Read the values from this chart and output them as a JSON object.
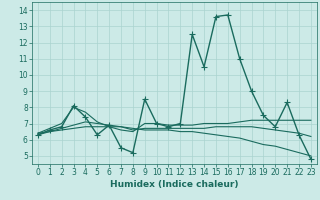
{
  "xlabel": "Humidex (Indice chaleur)",
  "background_color": "#cceae7",
  "grid_color": "#aad4d0",
  "line_color": "#1a6b5e",
  "xlim": [
    -0.5,
    23.5
  ],
  "ylim": [
    4.5,
    14.5
  ],
  "yticks": [
    5,
    6,
    7,
    8,
    9,
    10,
    11,
    12,
    13,
    14
  ],
  "xticks": [
    0,
    1,
    2,
    3,
    4,
    5,
    6,
    7,
    8,
    9,
    10,
    11,
    12,
    13,
    14,
    15,
    16,
    17,
    18,
    19,
    20,
    21,
    22,
    23
  ],
  "series": [
    {
      "x": [
        0,
        1,
        2,
        3,
        4,
        5,
        6,
        7,
        8,
        9,
        10,
        11,
        12,
        13,
        14,
        15,
        16,
        17,
        18,
        19,
        20,
        21,
        22,
        23
      ],
      "y": [
        6.3,
        6.6,
        6.8,
        8.1,
        7.4,
        6.3,
        6.9,
        5.5,
        5.2,
        8.5,
        7.0,
        6.8,
        7.0,
        12.5,
        10.5,
        13.6,
        13.7,
        11.0,
        9.0,
        7.5,
        6.8,
        8.3,
        6.3,
        4.8
      ],
      "color": "#1a6b5e",
      "marker": "+",
      "linewidth": 1.0,
      "markersize": 4
    },
    {
      "x": [
        0,
        1,
        2,
        3,
        4,
        5,
        6,
        7,
        8,
        9,
        10,
        11,
        12,
        13,
        14,
        15,
        16,
        17,
        18,
        19,
        20,
        21,
        22,
        23
      ],
      "y": [
        6.4,
        6.7,
        7.0,
        8.0,
        7.7,
        7.1,
        6.8,
        6.6,
        6.5,
        7.0,
        7.0,
        6.9,
        6.9,
        6.9,
        7.0,
        7.0,
        7.0,
        7.1,
        7.2,
        7.2,
        7.2,
        7.2,
        7.2,
        7.2
      ],
      "color": "#1a6b5e",
      "marker": null,
      "linewidth": 0.8,
      "markersize": 0
    },
    {
      "x": [
        0,
        1,
        2,
        3,
        4,
        5,
        6,
        7,
        8,
        9,
        10,
        11,
        12,
        13,
        14,
        15,
        16,
        17,
        18,
        19,
        20,
        21,
        22,
        23
      ],
      "y": [
        6.4,
        6.5,
        6.7,
        6.9,
        7.1,
        7.0,
        6.9,
        6.8,
        6.6,
        6.7,
        6.7,
        6.7,
        6.7,
        6.7,
        6.7,
        6.8,
        6.8,
        6.8,
        6.8,
        6.7,
        6.6,
        6.5,
        6.4,
        6.2
      ],
      "color": "#1a6b5e",
      "marker": null,
      "linewidth": 0.8,
      "markersize": 0
    },
    {
      "x": [
        0,
        1,
        2,
        3,
        4,
        5,
        6,
        7,
        8,
        9,
        10,
        11,
        12,
        13,
        14,
        15,
        16,
        17,
        18,
        19,
        20,
        21,
        22,
        23
      ],
      "y": [
        6.3,
        6.5,
        6.6,
        6.7,
        6.8,
        6.8,
        6.8,
        6.8,
        6.7,
        6.6,
        6.6,
        6.6,
        6.5,
        6.5,
        6.4,
        6.3,
        6.2,
        6.1,
        5.9,
        5.7,
        5.6,
        5.4,
        5.2,
        5.0
      ],
      "color": "#1a6b5e",
      "marker": null,
      "linewidth": 0.8,
      "markersize": 0
    }
  ],
  "tick_fontsize": 5.5,
  "label_fontsize": 6.5,
  "label_fontweight": "bold"
}
